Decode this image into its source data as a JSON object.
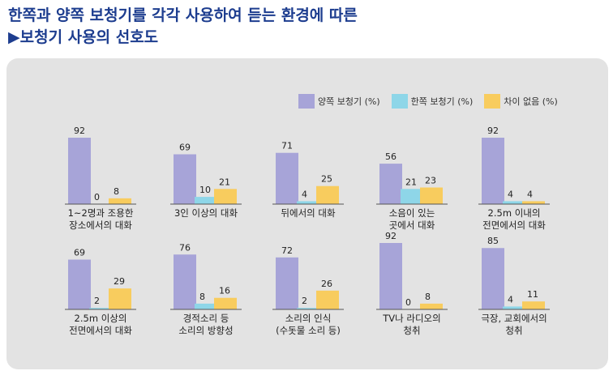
{
  "title_line1": "한쪽과 양쪽 보청기를 각각 사용하여 듣는 환경에 따른",
  "title_line2": "▶보청기 사용의 선호도",
  "colors": {
    "both": "#a7a4d8",
    "one": "#8ed6e8",
    "none": "#f8cc5e",
    "title": "#1d3d8f",
    "panel": "#e3e3e3"
  },
  "chart_data": {
    "type": "bar",
    "series": [
      {
        "name": "양쪽 보청기 (%)"
      },
      {
        "name": "한쪽 보청기 (%)"
      },
      {
        "name": "차이 없음 (%)"
      }
    ],
    "legend_position": "top-right",
    "panels": [
      {
        "label": [
          "1~2명과 조용한",
          "장소에서의 대화"
        ],
        "values": [
          92,
          0,
          8
        ]
      },
      {
        "label": [
          "3인 이상의 대화"
        ],
        "values": [
          69,
          10,
          21
        ]
      },
      {
        "label": [
          "뒤에서의 대화"
        ],
        "values": [
          71,
          4,
          25
        ]
      },
      {
        "label": [
          "소음이 있는",
          "곳에서 대화"
        ],
        "values": [
          56,
          21,
          23
        ]
      },
      {
        "label": [
          "2.5m 이내의",
          "전면에서의 대화"
        ],
        "values": [
          92,
          4,
          4
        ]
      },
      {
        "label": [
          "2.5m 이상의",
          "전면에서의 대화"
        ],
        "values": [
          69,
          2,
          29
        ]
      },
      {
        "label": [
          "경적소리 등",
          "소리의 방향성"
        ],
        "values": [
          76,
          8,
          16
        ]
      },
      {
        "label": [
          "소리의 인식",
          "(수돗물 소리 등)"
        ],
        "values": [
          72,
          2,
          26
        ]
      },
      {
        "label": [
          "TV나 라디오의",
          "청취"
        ],
        "values": [
          92,
          0,
          8
        ]
      },
      {
        "label": [
          "극장, 교회에서의",
          "청취"
        ],
        "values": [
          85,
          4,
          11
        ]
      }
    ]
  }
}
